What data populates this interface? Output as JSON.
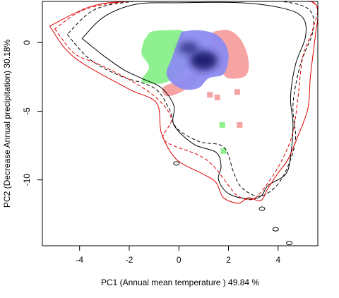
{
  "chart_data": {
    "type": "contour-density",
    "xlabel": "PC1 (Annual mean temperature ) 49.84 %",
    "ylabel": "PC2 (Decrease Annual precipitation) 30.18%",
    "xlim": [
      -5.5,
      5.6
    ],
    "ylim": [
      -14.8,
      3.0
    ],
    "xticks": [
      -4,
      -2,
      0,
      2,
      4
    ],
    "yticks": [
      0,
      -5,
      -10
    ],
    "grid": false,
    "colors": {
      "black_contour": "#000000",
      "red_contour": "#e00000",
      "green_region": "#8ff08f",
      "red_region": "#f5a3a3",
      "blue_region": "#8c8cf0",
      "blue_core": "#1a1a6e"
    },
    "series": [
      {
        "style": "black-solid",
        "points": [
          [
            -3.9,
            0.3
          ],
          [
            -3.0,
            -1.0
          ],
          [
            -2.2,
            -2.0
          ],
          [
            -1.5,
            -2.6
          ],
          [
            -0.7,
            -3.3
          ],
          [
            -0.2,
            -4.6
          ],
          [
            -0.2,
            -6.0
          ],
          [
            0.6,
            -7.4
          ],
          [
            1.5,
            -8.0
          ],
          [
            1.7,
            -9.0
          ],
          [
            1.6,
            -10.0
          ],
          [
            2.0,
            -11.0
          ],
          [
            2.8,
            -11.4
          ],
          [
            3.3,
            -11.2
          ],
          [
            3.6,
            -10.4
          ],
          [
            4.3,
            -9.6
          ],
          [
            4.5,
            -8.3
          ],
          [
            4.6,
            -6.0
          ],
          [
            4.5,
            -4.0
          ],
          [
            4.7,
            -1.6
          ],
          [
            5.1,
            0.4
          ],
          [
            5.0,
            1.8
          ],
          [
            4.2,
            2.5
          ],
          [
            2.5,
            2.9
          ],
          [
            0.0,
            2.9
          ],
          [
            -1.7,
            2.8
          ],
          [
            -3.0,
            1.9
          ],
          [
            -3.9,
            0.3
          ]
        ]
      },
      {
        "style": "black-dashed",
        "points": [
          [
            -4.5,
            0.6
          ],
          [
            -3.6,
            -1.2
          ],
          [
            -2.4,
            -2.4
          ],
          [
            -1.0,
            -3.3
          ],
          [
            -0.4,
            -4.8
          ],
          [
            -0.1,
            -6.2
          ],
          [
            0.8,
            -7.2
          ],
          [
            1.8,
            -7.6
          ],
          [
            2.2,
            -9.4
          ],
          [
            2.5,
            -10.5
          ],
          [
            3.2,
            -11.2
          ],
          [
            3.9,
            -10.5
          ],
          [
            4.4,
            -9.0
          ],
          [
            4.7,
            -7.0
          ],
          [
            4.6,
            -4.5
          ],
          [
            4.9,
            -1.6
          ],
          [
            5.4,
            0.8
          ],
          [
            5.3,
            2.3
          ],
          [
            4.5,
            2.9
          ],
          [
            3.0,
            3.1
          ],
          [
            0.0,
            3.1
          ],
          [
            -1.8,
            3.0
          ],
          [
            -3.4,
            2.4
          ],
          [
            -4.5,
            0.6
          ]
        ]
      },
      {
        "style": "red-solid",
        "points": [
          [
            -5.2,
            1.2
          ],
          [
            -4.6,
            -0.4
          ],
          [
            -3.8,
            -1.6
          ],
          [
            -2.0,
            -3.4
          ],
          [
            -0.9,
            -4.4
          ],
          [
            -0.7,
            -6.6
          ],
          [
            -0.1,
            -8.5
          ],
          [
            1.0,
            -9.6
          ],
          [
            1.5,
            -10.2
          ],
          [
            1.8,
            -11.3
          ],
          [
            2.4,
            -11.7
          ],
          [
            2.8,
            -11.3
          ],
          [
            3.3,
            -11.5
          ],
          [
            3.6,
            -10.6
          ],
          [
            4.0,
            -9.5
          ],
          [
            4.4,
            -8.5
          ],
          [
            4.8,
            -6.8
          ],
          [
            5.2,
            -4.8
          ],
          [
            5.3,
            -2.5
          ],
          [
            5.5,
            0.5
          ],
          [
            5.6,
            2.2
          ],
          [
            5.3,
            3.0
          ],
          [
            3.8,
            3.1
          ],
          [
            1.5,
            3.1
          ],
          [
            -2.0,
            3.0
          ],
          [
            -3.6,
            2.6
          ],
          [
            -5.2,
            1.2
          ]
        ]
      },
      {
        "style": "red-dashed",
        "points": [
          [
            -5.0,
            1.0
          ],
          [
            -4.2,
            -0.8
          ],
          [
            -3.2,
            -1.6
          ],
          [
            -1.8,
            -2.9
          ],
          [
            -0.8,
            -4.2
          ],
          [
            -0.3,
            -5.6
          ],
          [
            -0.6,
            -7.1
          ],
          [
            0.8,
            -8.2
          ],
          [
            1.4,
            -9.0
          ],
          [
            2.0,
            -10.4
          ],
          [
            2.4,
            -11.2
          ],
          [
            3.0,
            -11.4
          ],
          [
            3.6,
            -10.2
          ],
          [
            4.2,
            -8.4
          ],
          [
            4.6,
            -6.5
          ],
          [
            4.8,
            -4.0
          ],
          [
            5.0,
            -1.0
          ],
          [
            5.4,
            1.0
          ],
          [
            5.5,
            2.8
          ],
          [
            4.0,
            3.1
          ],
          [
            1.0,
            3.1
          ],
          [
            -2.0,
            3.0
          ],
          [
            -3.8,
            2.4
          ],
          [
            -5.0,
            1.0
          ]
        ]
      }
    ],
    "regions": [
      {
        "color": "green",
        "points": [
          [
            -1.3,
            0.4
          ],
          [
            -1.1,
            0.8
          ],
          [
            -0.4,
            0.9
          ],
          [
            0.2,
            0.8
          ],
          [
            0.1,
            -0.2
          ],
          [
            0.4,
            -1.2
          ],
          [
            0.2,
            -2.0
          ],
          [
            -0.4,
            -2.8
          ],
          [
            -0.9,
            -3.0
          ],
          [
            -1.5,
            -2.8
          ],
          [
            -1.2,
            -1.8
          ],
          [
            -1.5,
            -0.8
          ],
          [
            -1.4,
            0.2
          ]
        ]
      },
      {
        "color": "red",
        "points": [
          [
            1.4,
            0.8
          ],
          [
            2.0,
            0.9
          ],
          [
            2.5,
            0.2
          ],
          [
            2.8,
            -1.2
          ],
          [
            2.7,
            -2.4
          ],
          [
            2.0,
            -2.6
          ],
          [
            1.6,
            -2.0
          ],
          [
            1.0,
            -2.4
          ],
          [
            0.2,
            -3.5
          ],
          [
            -0.5,
            -3.9
          ],
          [
            -0.6,
            -3.2
          ],
          [
            0.3,
            -2.6
          ],
          [
            1.0,
            -1.6
          ],
          [
            1.4,
            -0.6
          ],
          [
            1.3,
            0.3
          ]
        ]
      },
      {
        "color": "blue",
        "points": [
          [
            0.1,
            0.8
          ],
          [
            0.8,
            0.9
          ],
          [
            1.5,
            0.6
          ],
          [
            1.9,
            -0.2
          ],
          [
            2.0,
            -1.2
          ],
          [
            1.8,
            -2.3
          ],
          [
            1.2,
            -2.6
          ],
          [
            0.8,
            -3.3
          ],
          [
            0.2,
            -3.4
          ],
          [
            -0.3,
            -2.9
          ],
          [
            -0.5,
            -2.2
          ],
          [
            -0.3,
            -1.2
          ],
          [
            -0.1,
            -0.2
          ],
          [
            0.1,
            0.8
          ]
        ]
      }
    ],
    "cores": [
      {
        "x": 1.0,
        "y": -1.3,
        "rx": 0.55,
        "ry": 0.7
      },
      {
        "x": 0.4,
        "y": -0.4,
        "rx": 0.4,
        "ry": 0.45
      }
    ],
    "specks": [
      {
        "color": "green",
        "x": 1.75,
        "y": -6.0
      },
      {
        "color": "red",
        "x": 2.45,
        "y": -6.0
      },
      {
        "color": "red",
        "x": 1.25,
        "y": -3.8
      },
      {
        "color": "red",
        "x": 1.55,
        "y": -4.0
      },
      {
        "color": "red",
        "x": 2.35,
        "y": -3.6
      },
      {
        "color": "green",
        "x": 1.8,
        "y": -7.9
      }
    ],
    "islands": [
      {
        "x": 3.35,
        "y": -12.1
      },
      {
        "x": 3.9,
        "y": -13.6
      },
      {
        "x": 4.45,
        "y": -14.6
      },
      {
        "x": -0.1,
        "y": -8.8
      }
    ]
  }
}
